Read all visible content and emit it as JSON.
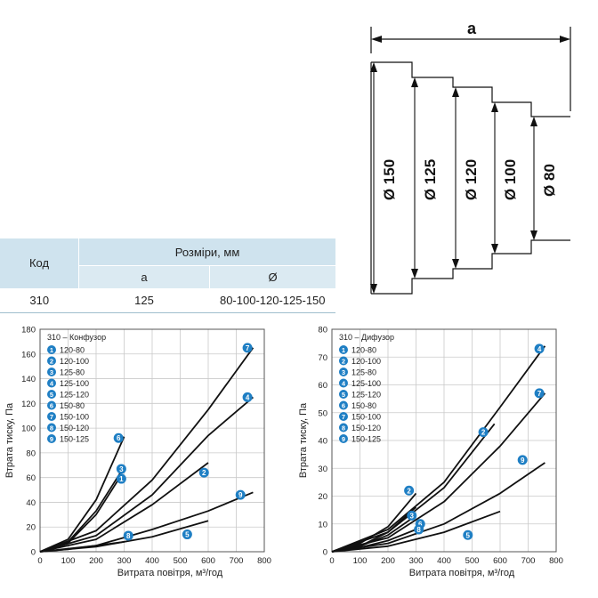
{
  "table": {
    "header_code": "Код",
    "header_dimensions": "Розміри, мм",
    "col_a": "a",
    "col_d": "Ø",
    "row_code": "310",
    "row_a": "125",
    "row_d": "80-100-120-125-150"
  },
  "drawing": {
    "dimension_a": "a",
    "diameters": [
      "Ø 150",
      "Ø 125",
      "Ø 120",
      "Ø 100",
      "Ø 80"
    ]
  },
  "colors": {
    "badge": "#1f7fc4",
    "table_header": "#cfe3ee",
    "curve": "#111111"
  },
  "chart_data": [
    {
      "type": "line",
      "title": "310 – Конфузор",
      "xlabel": "Витрата повітря, м³/год",
      "ylabel": "Втрата тиску, Па",
      "xlim": [
        0,
        800
      ],
      "ylim": [
        0,
        180
      ],
      "xticks": [
        0,
        100,
        200,
        300,
        400,
        500,
        600,
        700,
        800
      ],
      "yticks": [
        0,
        20,
        40,
        60,
        80,
        100,
        120,
        140,
        160,
        180
      ],
      "grid": true,
      "legend": [
        {
          "num": "1",
          "label": "120-80"
        },
        {
          "num": "2",
          "label": "120-100"
        },
        {
          "num": "3",
          "label": "125-80"
        },
        {
          "num": "4",
          "label": "125-100"
        },
        {
          "num": "5",
          "label": "125-120"
        },
        {
          "num": "6",
          "label": "150-80"
        },
        {
          "num": "7",
          "label": "150-100"
        },
        {
          "num": "8",
          "label": "150-120"
        },
        {
          "num": "9",
          "label": "150-125"
        }
      ],
      "series": [
        {
          "num": "6",
          "x": [
            0,
            100,
            200,
            300
          ],
          "y": [
            0,
            10,
            42,
            93
          ]
        },
        {
          "num": "3",
          "x": [
            0,
            100,
            200,
            290
          ],
          "y": [
            0,
            8,
            33,
            65
          ]
        },
        {
          "num": "1",
          "x": [
            0,
            100,
            200,
            290
          ],
          "y": [
            0,
            7,
            30,
            62
          ]
        },
        {
          "num": "7",
          "x": [
            0,
            200,
            400,
            600,
            760
          ],
          "y": [
            0,
            17,
            58,
            115,
            165
          ]
        },
        {
          "num": "4",
          "x": [
            0,
            200,
            400,
            600,
            760
          ],
          "y": [
            0,
            13,
            46,
            94,
            125
          ]
        },
        {
          "num": "2",
          "x": [
            0,
            200,
            400,
            600
          ],
          "y": [
            0,
            10,
            38,
            72
          ]
        },
        {
          "num": "9",
          "x": [
            0,
            200,
            400,
            600,
            760
          ],
          "y": [
            0,
            5,
            18,
            33,
            48
          ]
        },
        {
          "num": "5",
          "x": [
            0,
            200,
            400,
            600
          ],
          "y": [
            0,
            4,
            12,
            25
          ]
        },
        {
          "num": "8",
          "x": [
            0,
            100,
            200,
            300
          ],
          "y": [
            0,
            2,
            5,
            8
          ]
        }
      ],
      "labels": [
        {
          "num": "7",
          "x": 740,
          "y": 165
        },
        {
          "num": "4",
          "x": 740,
          "y": 125
        },
        {
          "num": "6",
          "x": 280,
          "y": 92
        },
        {
          "num": "3",
          "x": 290,
          "y": 67
        },
        {
          "num": "2",
          "x": 585,
          "y": 64
        },
        {
          "num": "1",
          "x": 290,
          "y": 59
        },
        {
          "num": "9",
          "x": 715,
          "y": 46
        },
        {
          "num": "8",
          "x": 315,
          "y": 13
        },
        {
          "num": "5",
          "x": 525,
          "y": 14
        }
      ]
    },
    {
      "type": "line",
      "title": "310 – Дифузор",
      "xlabel": "Витрата повітря, м³/год",
      "ylabel": "Втрата тиску, Па",
      "xlim": [
        0,
        800
      ],
      "ylim": [
        0,
        80
      ],
      "xticks": [
        0,
        100,
        200,
        300,
        400,
        500,
        600,
        700,
        800
      ],
      "yticks": [
        0,
        10,
        20,
        30,
        40,
        50,
        60,
        70,
        80
      ],
      "grid": true,
      "legend": [
        {
          "num": "1",
          "label": "120-80"
        },
        {
          "num": "2",
          "label": "120-100"
        },
        {
          "num": "3",
          "label": "125-80"
        },
        {
          "num": "4",
          "label": "125-100"
        },
        {
          "num": "5",
          "label": "125-120"
        },
        {
          "num": "6",
          "label": "150-80"
        },
        {
          "num": "7",
          "label": "150-100"
        },
        {
          "num": "8",
          "label": "150-120"
        },
        {
          "num": "9",
          "label": "150-125"
        }
      ],
      "series": [
        {
          "num": "1",
          "x": [
            0,
            100,
            200,
            300
          ],
          "y": [
            0,
            3,
            9,
            21
          ]
        },
        {
          "num": "3",
          "x": [
            0,
            100,
            200,
            300
          ],
          "y": [
            0,
            2,
            7,
            16
          ]
        },
        {
          "num": "6",
          "x": [
            0,
            100,
            200,
            300
          ],
          "y": [
            0,
            2,
            6,
            13
          ]
        },
        {
          "num": "4",
          "x": [
            0,
            200,
            400,
            600,
            760
          ],
          "y": [
            0,
            8,
            25,
            52,
            74
          ]
        },
        {
          "num": "2",
          "x": [
            0,
            200,
            400,
            580
          ],
          "y": [
            0,
            7,
            23,
            46
          ]
        },
        {
          "num": "7",
          "x": [
            0,
            200,
            400,
            600,
            760
          ],
          "y": [
            0,
            5,
            18,
            38,
            57
          ]
        },
        {
          "num": "9",
          "x": [
            0,
            200,
            400,
            600,
            760
          ],
          "y": [
            0,
            3,
            10,
            21,
            32
          ]
        },
        {
          "num": "8",
          "x": [
            0,
            100,
            200,
            300
          ],
          "y": [
            0,
            1.5,
            4,
            8
          ]
        },
        {
          "num": "5",
          "x": [
            0,
            200,
            400,
            600
          ],
          "y": [
            0,
            2,
            7,
            14.5
          ]
        }
      ],
      "labels": [
        {
          "num": "2",
          "x": 275,
          "y": 22
        },
        {
          "num": "3",
          "x": 285,
          "y": 13
        },
        {
          "num": "6",
          "x": 315,
          "y": 10
        },
        {
          "num": "8",
          "x": 310,
          "y": 8
        },
        {
          "num": "4",
          "x": 740,
          "y": 73
        },
        {
          "num": "7",
          "x": 740,
          "y": 57
        },
        {
          "num": "2",
          "x": 540,
          "y": 43
        },
        {
          "num": "9",
          "x": 680,
          "y": 33
        },
        {
          "num": "5",
          "x": 485,
          "y": 6
        }
      ]
    }
  ]
}
